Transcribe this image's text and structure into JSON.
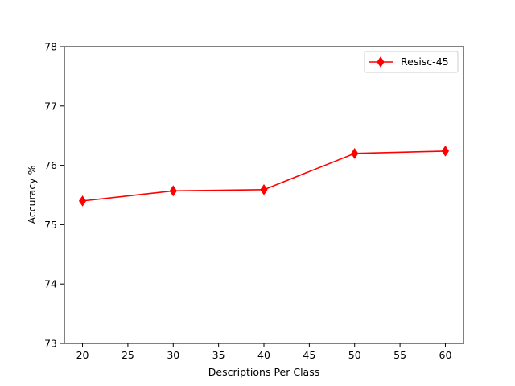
{
  "chart_data": {
    "type": "line",
    "title": "",
    "xlabel": "Descriptions Per Class",
    "ylabel": "Accuracy %",
    "xlim": [
      18,
      62
    ],
    "ylim": [
      73,
      78
    ],
    "xticks": [
      20,
      25,
      30,
      35,
      40,
      45,
      50,
      55,
      60
    ],
    "yticks": [
      73,
      74,
      75,
      76,
      77,
      78
    ],
    "grid": false,
    "legend_position": "top-right",
    "series": [
      {
        "name": "Resisc-45",
        "color": "#ff0000",
        "marker": "diamond",
        "x": [
          20,
          30,
          40,
          50,
          60
        ],
        "y": [
          75.4,
          75.57,
          75.59,
          76.2,
          76.24
        ]
      }
    ]
  }
}
